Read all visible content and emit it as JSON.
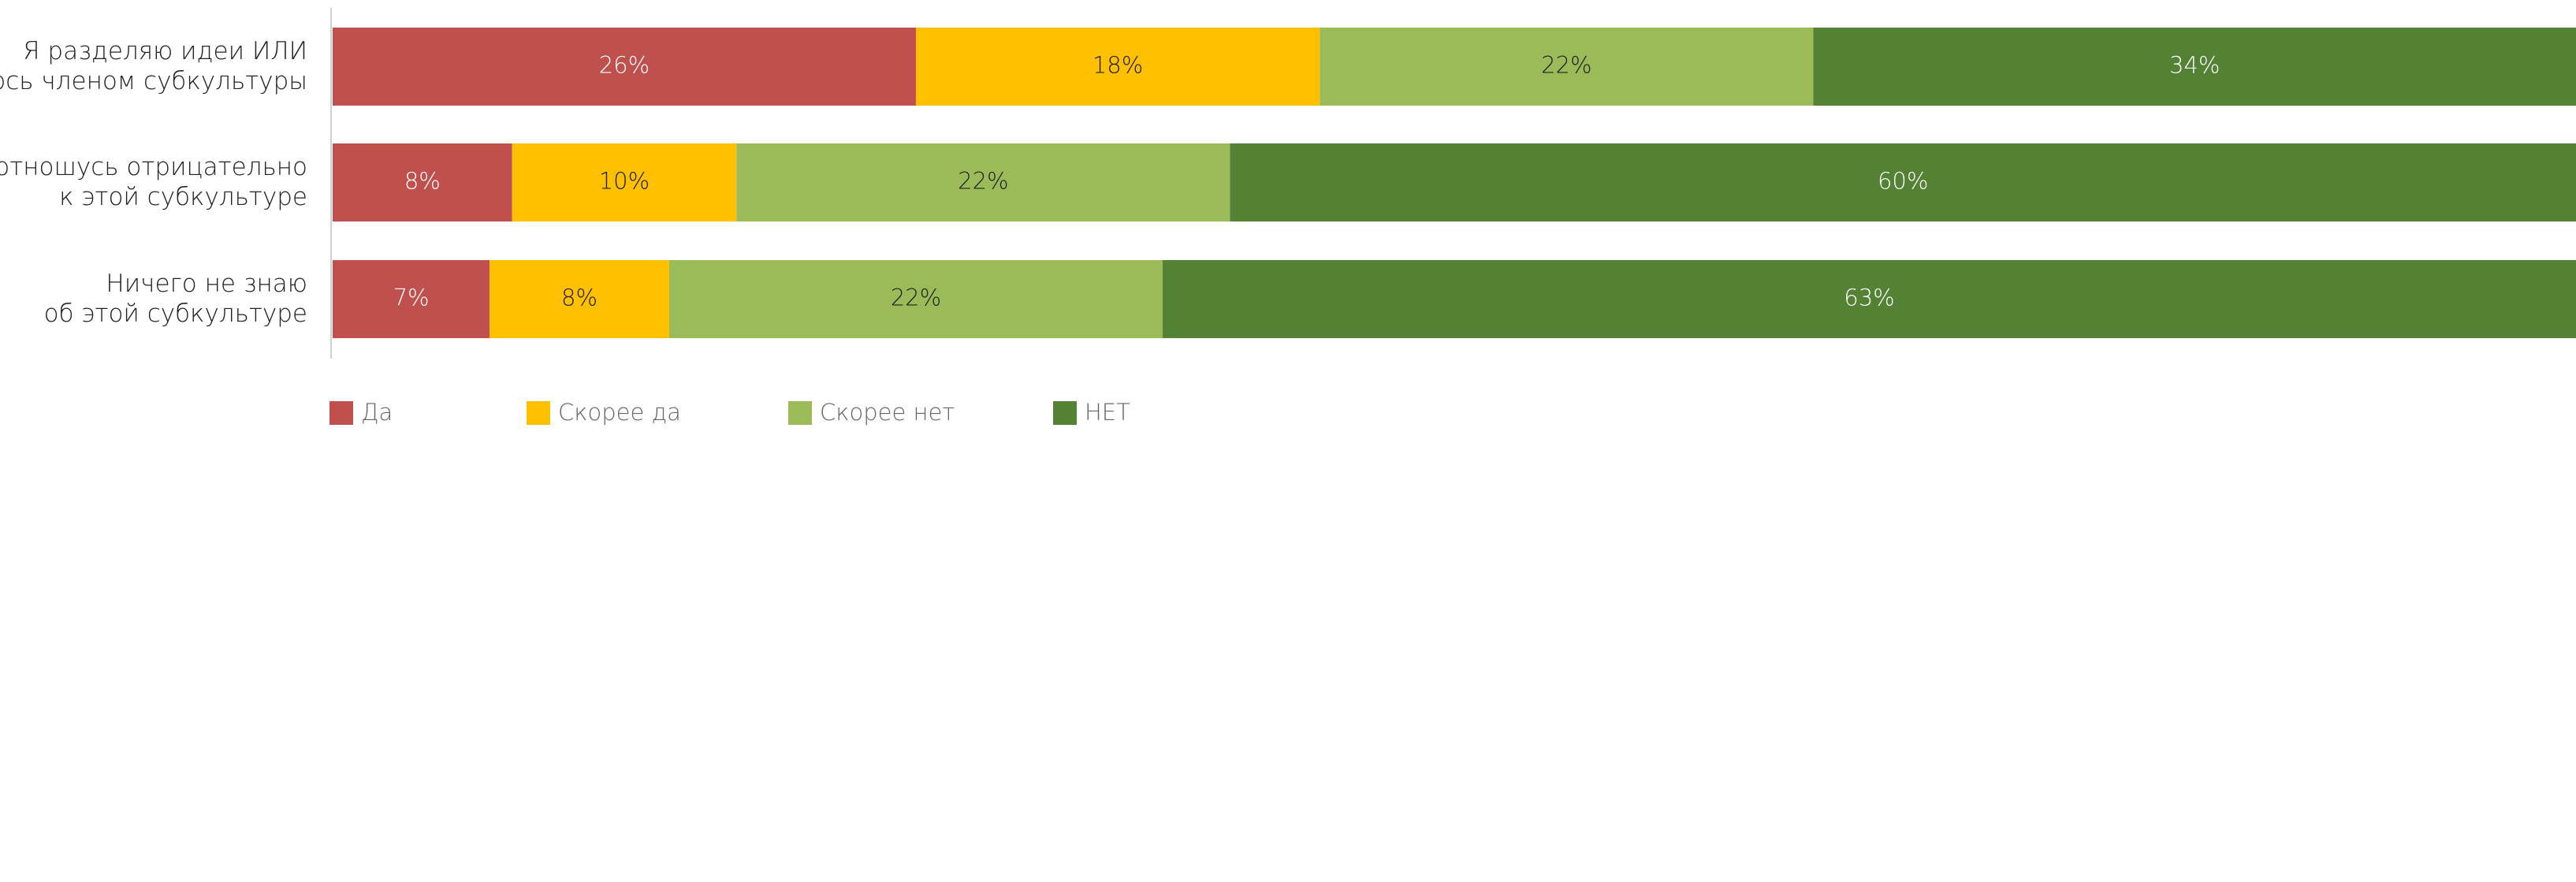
{
  "chart_data": {
    "type": "stacked-bar-horizontal",
    "categories": [
      [
        "Я разделяю идеи ИЛИ",
        "являюсь членом субкультуры"
      ],
      [
        "Я отношусь отрицательно",
        "к этой субкультуре"
      ],
      [
        "Ничего не знаю",
        "об этой субкультуре"
      ]
    ],
    "series": [
      {
        "name": "Да",
        "color": "#c0504d",
        "values": [
          26,
          8,
          7
        ],
        "value_labels": [
          "26%",
          "8%",
          "7%"
        ]
      },
      {
        "name": "Скорее да",
        "color": "#ffc000",
        "values": [
          18,
          10,
          8
        ],
        "value_labels": [
          "18%",
          "10%",
          "8%"
        ]
      },
      {
        "name": "Скорее нет",
        "color": "#9bbb59",
        "values": [
          22,
          22,
          22
        ],
        "value_labels": [
          "22%",
          "22%",
          "22%"
        ]
      },
      {
        "name": "НЕТ",
        "color": "#548235",
        "values": [
          34,
          60,
          63
        ],
        "value_labels": [
          "34%",
          "60%",
          "63%"
        ]
      }
    ],
    "legend": "bottom"
  }
}
